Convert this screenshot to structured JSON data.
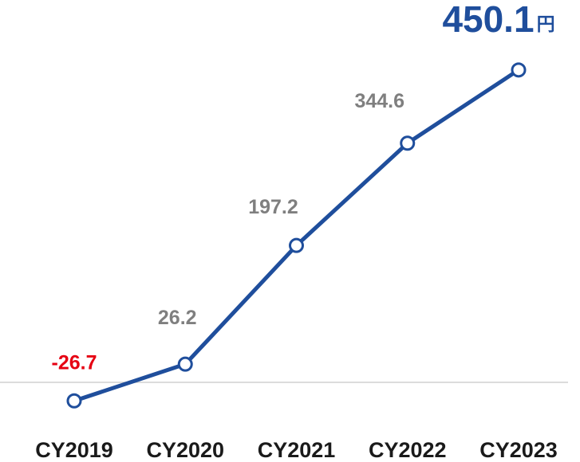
{
  "chart_data": {
    "type": "line",
    "categories": [
      "CY2019",
      "CY2020",
      "CY2021",
      "CY2022",
      "CY2023"
    ],
    "values": [
      -26.7,
      26.2,
      197.2,
      344.6,
      450.1
    ],
    "unit": "円",
    "color": "#1f4e9c",
    "ylim": [
      -70,
      505
    ]
  }
}
